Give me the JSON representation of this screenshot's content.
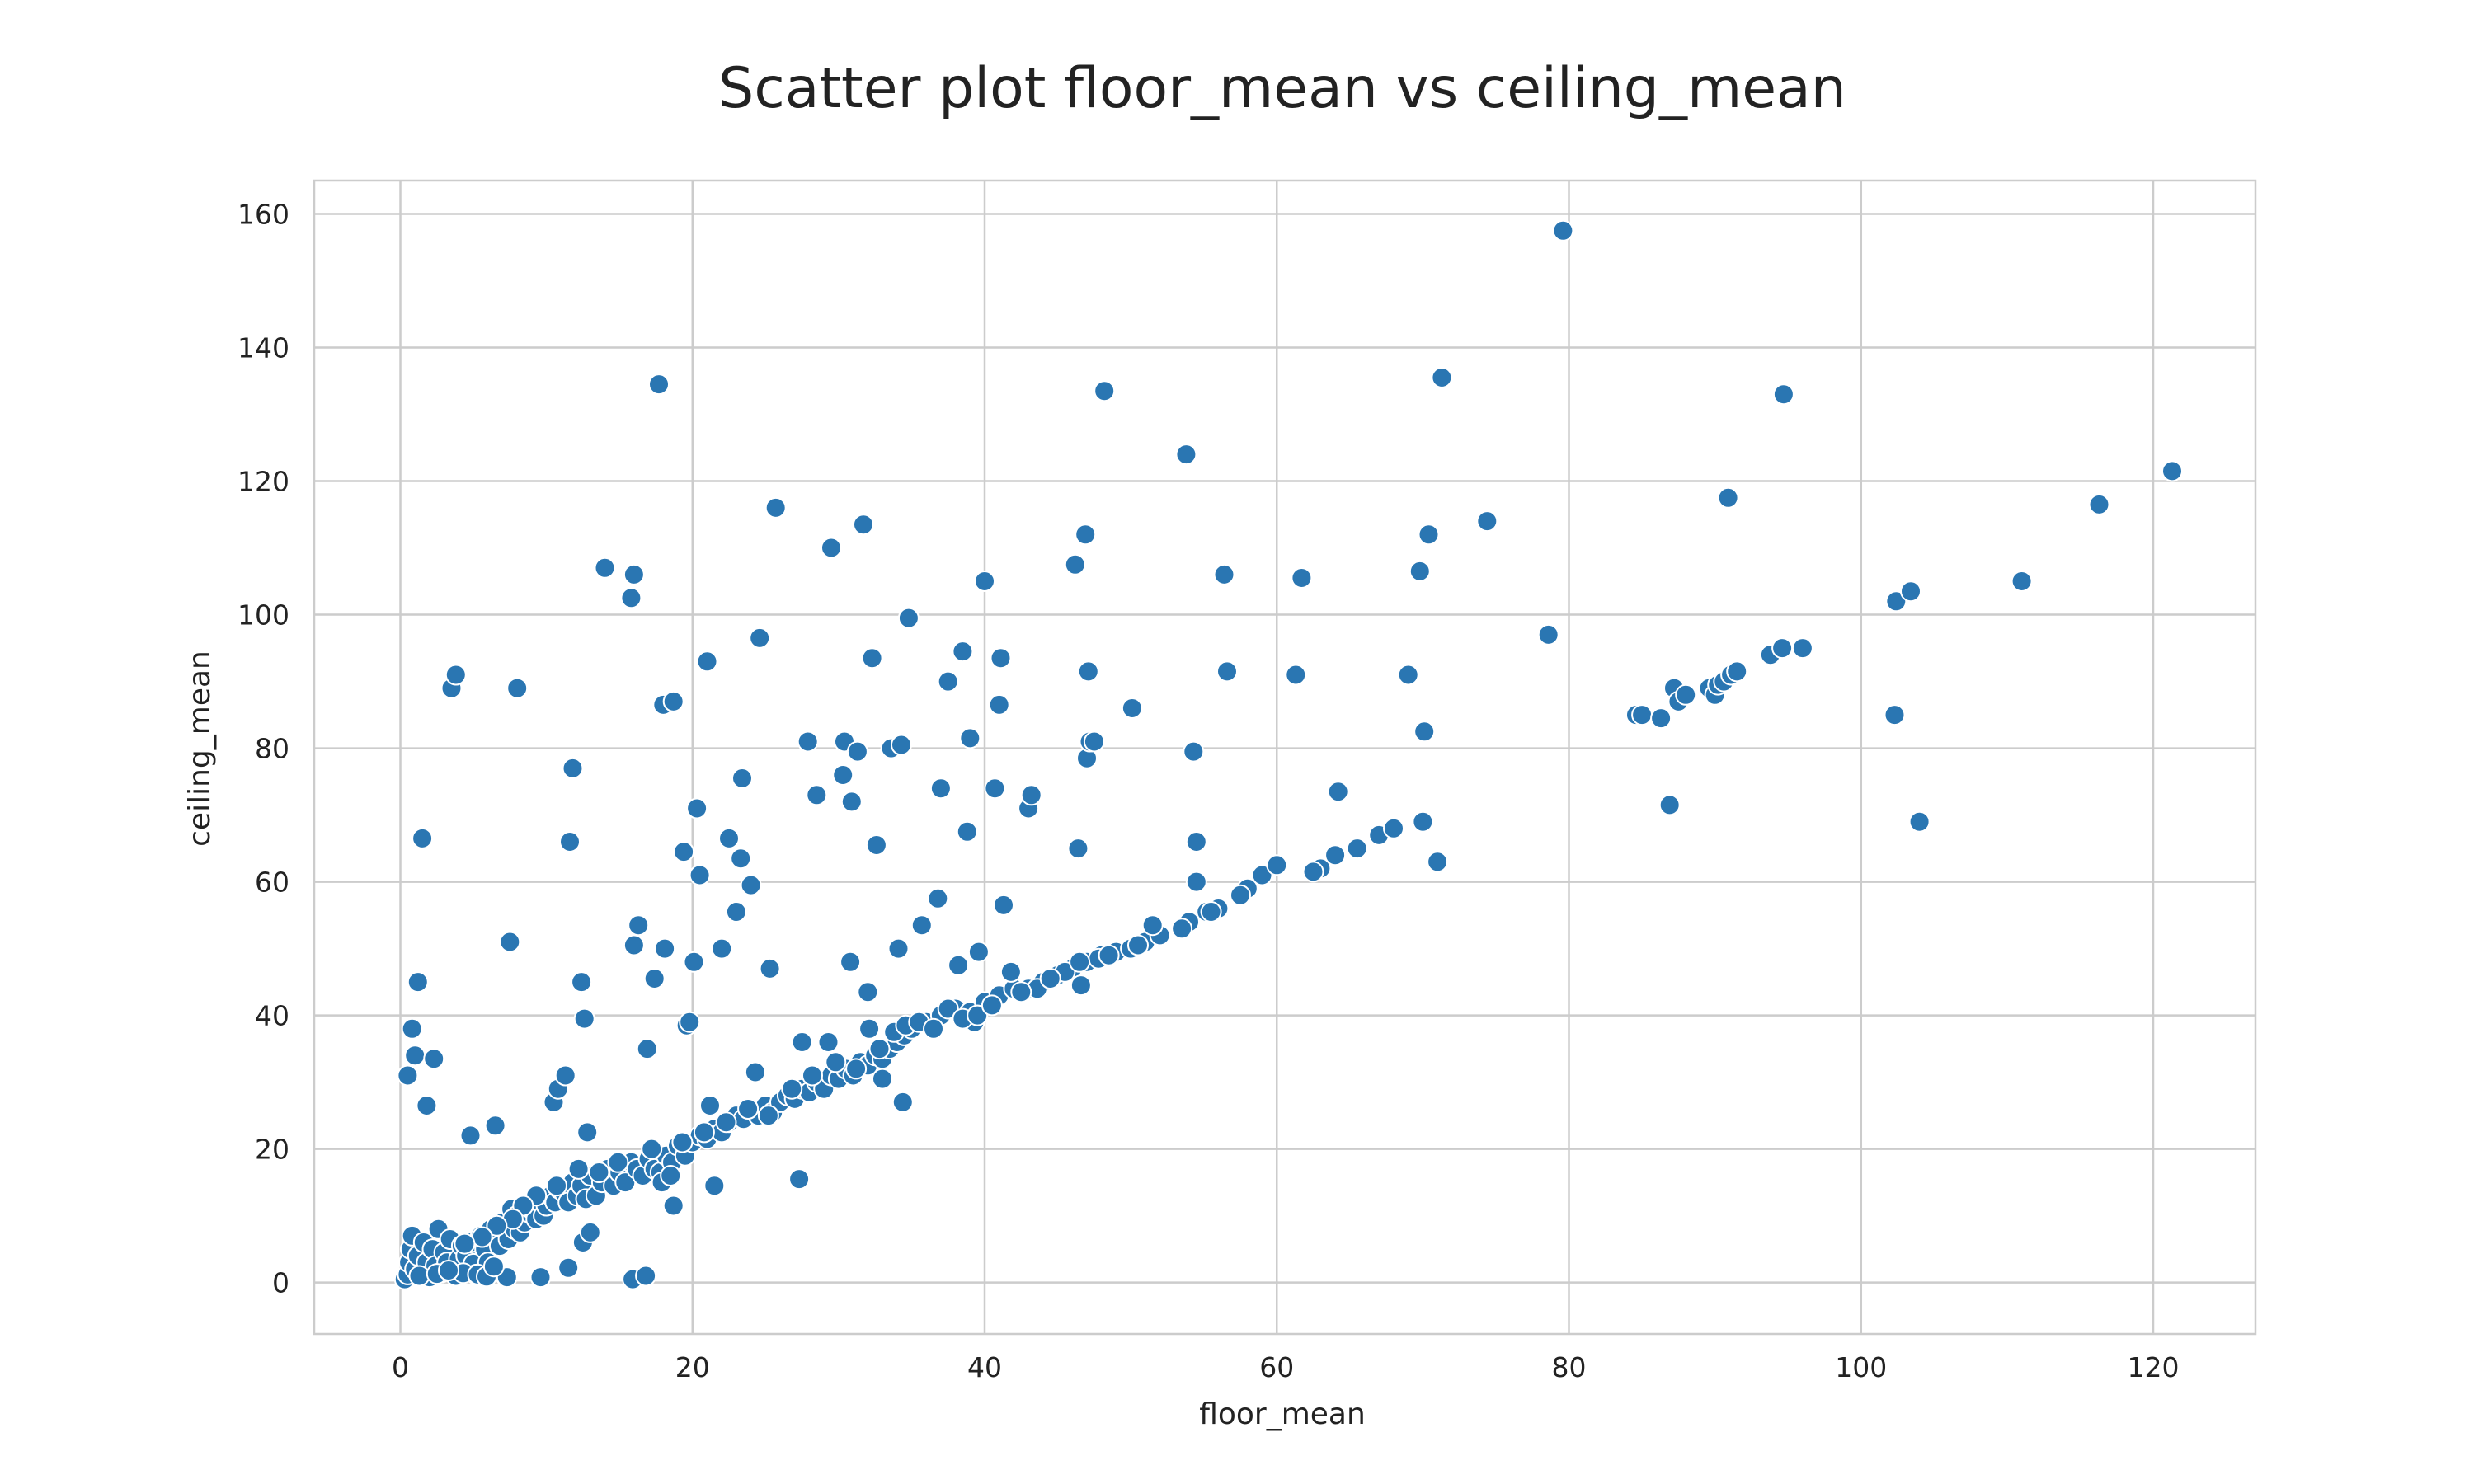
{
  "chart_data": {
    "type": "scatter",
    "title": "Scatter plot floor_mean vs ceiling_mean",
    "xlabel": "floor_mean",
    "ylabel": "ceiling_mean",
    "xlim": [
      -5.9,
      127
    ],
    "ylim": [
      -7.7,
      165
    ],
    "xticks": [
      0,
      20,
      40,
      60,
      80,
      100,
      120
    ],
    "yticks": [
      0,
      20,
      40,
      60,
      80,
      100,
      120,
      140,
      160
    ],
    "grid": true,
    "legend": "none",
    "colors": {
      "point": "#2a76b2",
      "grid": "#cccccc",
      "background": "#ffffff",
      "text": "#222222"
    },
    "points": [
      [
        0.3,
        0.5
      ],
      [
        0.5,
        1.2
      ],
      [
        0.6,
        3.0
      ],
      [
        0.7,
        5.0
      ],
      [
        0.8,
        7.0
      ],
      [
        1.0,
        2.0
      ],
      [
        1.2,
        4.0
      ],
      [
        1.4,
        1.0
      ],
      [
        1.6,
        6.0
      ],
      [
        1.8,
        3.0
      ],
      [
        2.0,
        0.8
      ],
      [
        2.2,
        5.0
      ],
      [
        2.4,
        2.5
      ],
      [
        2.6,
        8.0
      ],
      [
        2.8,
        1.5
      ],
      [
        3.0,
        4.5
      ],
      [
        3.2,
        3.0
      ],
      [
        3.4,
        6.5
      ],
      [
        3.6,
        2.0
      ],
      [
        3.8,
        1.0
      ],
      [
        4.0,
        3.5
      ],
      [
        4.2,
        5.5
      ],
      [
        4.5,
        4.0
      ],
      [
        4.8,
        6.0
      ],
      [
        5.0,
        2.8
      ],
      [
        5.2,
        1.2
      ],
      [
        5.5,
        7.0
      ],
      [
        5.8,
        5.0
      ],
      [
        6.0,
        3.0
      ],
      [
        6.2,
        8.0
      ],
      [
        6.5,
        7.5
      ],
      [
        6.8,
        5.5
      ],
      [
        7.0,
        9.0
      ],
      [
        7.2,
        1.0
      ],
      [
        7.4,
        6.5
      ],
      [
        7.6,
        11.0
      ],
      [
        7.8,
        8.0
      ],
      [
        8.0,
        10.0
      ],
      [
        8.2,
        7.5
      ],
      [
        8.5,
        9.0
      ],
      [
        8.8,
        10.5
      ],
      [
        9.0,
        11.0
      ],
      [
        9.3,
        9.5
      ],
      [
        9.6,
        12.0
      ],
      [
        9.8,
        10.0
      ],
      [
        10.0,
        11.5
      ],
      [
        10.3,
        13.0
      ],
      [
        10.6,
        12.0
      ],
      [
        10.9,
        14.0
      ],
      [
        11.2,
        13.5
      ],
      [
        11.5,
        12.0
      ],
      [
        11.8,
        15.0
      ],
      [
        12.1,
        13.0
      ],
      [
        12.4,
        14.5
      ],
      [
        12.7,
        12.5
      ],
      [
        13.0,
        16.0
      ],
      [
        13.4,
        13.0
      ],
      [
        13.8,
        15.0
      ],
      [
        14.2,
        17.0
      ],
      [
        14.6,
        14.5
      ],
      [
        15.0,
        16.5
      ],
      [
        15.4,
        15.0
      ],
      [
        15.8,
        18.0
      ],
      [
        16.2,
        17.0
      ],
      [
        16.6,
        16.0
      ],
      [
        17.0,
        18.5
      ],
      [
        17.4,
        17.0
      ],
      [
        17.8,
        16.5
      ],
      [
        18.2,
        19.0
      ],
      [
        18.6,
        18.0
      ],
      [
        19.0,
        20.5
      ],
      [
        19.5,
        19.0
      ],
      [
        20.0,
        21.0
      ],
      [
        20.5,
        22.0
      ],
      [
        21.0,
        21.5
      ],
      [
        21.5,
        23.0
      ],
      [
        22.0,
        22.5
      ],
      [
        22.5,
        24.0
      ],
      [
        23.0,
        25.0
      ],
      [
        23.5,
        24.5
      ],
      [
        24.0,
        26.0
      ],
      [
        24.5,
        25.0
      ],
      [
        25.0,
        26.5
      ],
      [
        25.5,
        25.5
      ],
      [
        26.0,
        27.0
      ],
      [
        26.5,
        28.0
      ],
      [
        27.0,
        27.5
      ],
      [
        27.5,
        29.0
      ],
      [
        28.0,
        28.5
      ],
      [
        28.5,
        30.0
      ],
      [
        29.0,
        29.0
      ],
      [
        29.5,
        31.0
      ],
      [
        30.0,
        30.5
      ],
      [
        30.5,
        32.0
      ],
      [
        31.0,
        31.0
      ],
      [
        31.5,
        33.0
      ],
      [
        32.0,
        32.5
      ],
      [
        32.5,
        34.0
      ],
      [
        33.0,
        33.5
      ],
      [
        33.5,
        35.0
      ],
      [
        34.0,
        36.0
      ],
      [
        34.5,
        37.0
      ],
      [
        35.0,
        38.0
      ],
      [
        36.0,
        39.0
      ],
      [
        37.0,
        40.0
      ],
      [
        38.0,
        41.0
      ],
      [
        39.0,
        40.5
      ],
      [
        40.0,
        42.0
      ],
      [
        41.0,
        43.0
      ],
      [
        42.0,
        44.0
      ],
      [
        43.0,
        44.0
      ],
      [
        44.0,
        45.0
      ],
      [
        45.0,
        46.0
      ],
      [
        46.0,
        47.0
      ],
      [
        47.0,
        48.0
      ],
      [
        48.0,
        49.0
      ],
      [
        49.0,
        49.5
      ],
      [
        50.0,
        50.0
      ],
      [
        51.0,
        51.0
      ],
      [
        52.0,
        52.0
      ],
      [
        54.0,
        54.0
      ],
      [
        56.0,
        56.0
      ],
      [
        58.0,
        59.0
      ],
      [
        59.0,
        61.0
      ],
      [
        63.0,
        62.0
      ],
      [
        67.0,
        67.0
      ],
      [
        68.0,
        68.0
      ],
      [
        70.0,
        69.0
      ],
      [
        71.0,
        63.0
      ],
      [
        0.5,
        31.0
      ],
      [
        0.8,
        38.0
      ],
      [
        1.0,
        34.0
      ],
      [
        1.2,
        45.0
      ],
      [
        1.5,
        66.5
      ],
      [
        1.8,
        26.5
      ],
      [
        2.3,
        33.5
      ],
      [
        3.5,
        89.0
      ],
      [
        3.8,
        91.0
      ],
      [
        4.8,
        22.0
      ],
      [
        6.5,
        23.5
      ],
      [
        7.5,
        51.0
      ],
      [
        8.0,
        89.0
      ],
      [
        10.5,
        27.0
      ],
      [
        10.8,
        29.0
      ],
      [
        11.3,
        31.0
      ],
      [
        11.6,
        66.0
      ],
      [
        11.8,
        77.0
      ],
      [
        12.4,
        45.0
      ],
      [
        12.6,
        39.5
      ],
      [
        12.8,
        22.5
      ],
      [
        14.0,
        107.0
      ],
      [
        15.8,
        102.5
      ],
      [
        16.0,
        106.0
      ],
      [
        16.3,
        53.5
      ],
      [
        16.0,
        50.5
      ],
      [
        16.9,
        35.0
      ],
      [
        17.4,
        45.5
      ],
      [
        17.7,
        134.5
      ],
      [
        18.0,
        86.5
      ],
      [
        18.1,
        50.0
      ],
      [
        18.7,
        87.0
      ],
      [
        19.4,
        64.5
      ],
      [
        19.6,
        38.5
      ],
      [
        19.8,
        39.0
      ],
      [
        20.1,
        48.0
      ],
      [
        20.3,
        71.0
      ],
      [
        20.5,
        61.0
      ],
      [
        21.0,
        93.0
      ],
      [
        21.2,
        26.5
      ],
      [
        21.5,
        14.5
      ],
      [
        22.0,
        50.0
      ],
      [
        22.5,
        66.5
      ],
      [
        23.0,
        55.5
      ],
      [
        23.3,
        63.5
      ],
      [
        23.4,
        75.5
      ],
      [
        24.0,
        59.5
      ],
      [
        24.3,
        31.5
      ],
      [
        24.6,
        96.5
      ],
      [
        25.3,
        47.0
      ],
      [
        25.7,
        116.0
      ],
      [
        27.3,
        15.5
      ],
      [
        27.5,
        36.0
      ],
      [
        27.9,
        81.0
      ],
      [
        28.5,
        73.0
      ],
      [
        29.3,
        36.0
      ],
      [
        29.5,
        110.0
      ],
      [
        30.3,
        76.0
      ],
      [
        30.4,
        81.0
      ],
      [
        30.8,
        48.0
      ],
      [
        30.9,
        72.0
      ],
      [
        31.3,
        79.5
      ],
      [
        31.7,
        113.5
      ],
      [
        32.0,
        43.5
      ],
      [
        32.3,
        93.5
      ],
      [
        32.6,
        65.5
      ],
      [
        32.1,
        38.0
      ],
      [
        33.0,
        30.5
      ],
      [
        33.6,
        80.0
      ],
      [
        34.1,
        50.0
      ],
      [
        34.3,
        80.5
      ],
      [
        34.4,
        27.0
      ],
      [
        34.8,
        99.5
      ],
      [
        35.7,
        53.5
      ],
      [
        36.8,
        57.5
      ],
      [
        37.0,
        74.0
      ],
      [
        37.5,
        90.0
      ],
      [
        38.2,
        47.5
      ],
      [
        38.5,
        94.5
      ],
      [
        38.8,
        67.5
      ],
      [
        39.0,
        81.5
      ],
      [
        39.3,
        39.0
      ],
      [
        39.6,
        49.5
      ],
      [
        39.5,
        40.0
      ],
      [
        40.0,
        105.0
      ],
      [
        40.7,
        74.0
      ],
      [
        41.0,
        86.5
      ],
      [
        41.1,
        93.5
      ],
      [
        41.3,
        56.5
      ],
      [
        41.8,
        46.5
      ],
      [
        43.0,
        71.0
      ],
      [
        43.2,
        73.0
      ],
      [
        43.6,
        44.0
      ],
      [
        45.5,
        46.5
      ],
      [
        46.2,
        107.5
      ],
      [
        46.4,
        65.0
      ],
      [
        46.6,
        44.5
      ],
      [
        46.9,
        112.0
      ],
      [
        47.0,
        78.5
      ],
      [
        47.1,
        91.5
      ],
      [
        47.2,
        81.0
      ],
      [
        47.5,
        81.0
      ],
      [
        47.8,
        48.5
      ],
      [
        48.2,
        133.5
      ],
      [
        50.1,
        86.0
      ],
      [
        53.8,
        124.0
      ],
      [
        54.3,
        79.5
      ],
      [
        54.5,
        66.0
      ],
      [
        54.5,
        60.0
      ],
      [
        55.2,
        55.5
      ],
      [
        56.4,
        106.0
      ],
      [
        56.6,
        91.5
      ],
      [
        60.0,
        62.5
      ],
      [
        61.3,
        91.0
      ],
      [
        61.7,
        105.5
      ],
      [
        64.2,
        73.5
      ],
      [
        69.0,
        91.0
      ],
      [
        69.8,
        106.5
      ],
      [
        70.1,
        82.5
      ],
      [
        70.4,
        112.0
      ],
      [
        71.3,
        135.5
      ],
      [
        74.4,
        114.0
      ],
      [
        78.6,
        97.0
      ],
      [
        79.6,
        157.5
      ],
      [
        84.6,
        85.0
      ],
      [
        85.0,
        85.0
      ],
      [
        86.3,
        84.5
      ],
      [
        86.9,
        71.5
      ],
      [
        87.2,
        89.0
      ],
      [
        87.5,
        87.0
      ],
      [
        88.0,
        88.0
      ],
      [
        89.6,
        89.0
      ],
      [
        90.0,
        88.0
      ],
      [
        90.2,
        89.5
      ],
      [
        90.6,
        90.0
      ],
      [
        90.9,
        117.5
      ],
      [
        91.1,
        91.0
      ],
      [
        91.5,
        91.5
      ],
      [
        93.8,
        94.0
      ],
      [
        94.6,
        95.0
      ],
      [
        94.7,
        133.0
      ],
      [
        96.0,
        95.0
      ],
      [
        102.3,
        85.0
      ],
      [
        102.4,
        102.0
      ],
      [
        103.4,
        103.5
      ],
      [
        104.0,
        69.0
      ],
      [
        111.0,
        105.0
      ],
      [
        116.3,
        116.5
      ],
      [
        121.3,
        121.5
      ],
      [
        9.6,
        0.8
      ],
      [
        11.5,
        2.2
      ],
      [
        12.5,
        6.0
      ],
      [
        13.0,
        7.5
      ],
      [
        15.9,
        0.5
      ],
      [
        16.8,
        1.0
      ],
      [
        18.7,
        11.5
      ],
      [
        7.3,
        0.8
      ],
      [
        1.3,
        1.0
      ],
      [
        2.5,
        1.3
      ],
      [
        4.3,
        1.4
      ],
      [
        5.3,
        1.2
      ],
      [
        5.9,
        0.9
      ],
      [
        6.4,
        2.4
      ],
      [
        3.3,
        1.8
      ],
      [
        17.9,
        15.0
      ],
      [
        17.2,
        20.0
      ],
      [
        18.5,
        16.0
      ],
      [
        14.9,
        18.0
      ],
      [
        13.6,
        16.5
      ],
      [
        12.2,
        17.0
      ],
      [
        10.7,
        14.5
      ],
      [
        9.3,
        13.0
      ],
      [
        8.4,
        11.5
      ],
      [
        7.7,
        9.5
      ],
      [
        6.6,
        8.5
      ],
      [
        5.6,
        6.8
      ],
      [
        4.4,
        5.8
      ],
      [
        19.3,
        21.0
      ],
      [
        20.8,
        22.5
      ],
      [
        22.3,
        24.0
      ],
      [
        23.8,
        26.0
      ],
      [
        25.2,
        25.0
      ],
      [
        26.8,
        29.0
      ],
      [
        28.2,
        31.0
      ],
      [
        29.8,
        33.0
      ],
      [
        31.2,
        32.0
      ],
      [
        32.8,
        35.0
      ],
      [
        33.8,
        37.5
      ],
      [
        34.6,
        38.5
      ],
      [
        35.5,
        39.0
      ],
      [
        36.5,
        38.0
      ],
      [
        37.5,
        41.0
      ],
      [
        38.5,
        39.5
      ],
      [
        39.5,
        40.0
      ],
      [
        40.5,
        41.5
      ],
      [
        42.5,
        43.5
      ],
      [
        44.5,
        45.5
      ],
      [
        46.5,
        48.0
      ],
      [
        48.5,
        49.0
      ],
      [
        50.5,
        50.5
      ],
      [
        51.5,
        53.5
      ],
      [
        53.5,
        53.0
      ],
      [
        55.5,
        55.5
      ],
      [
        57.5,
        58.0
      ],
      [
        62.5,
        61.5
      ],
      [
        64.0,
        64.0
      ],
      [
        65.5,
        65.0
      ]
    ]
  }
}
